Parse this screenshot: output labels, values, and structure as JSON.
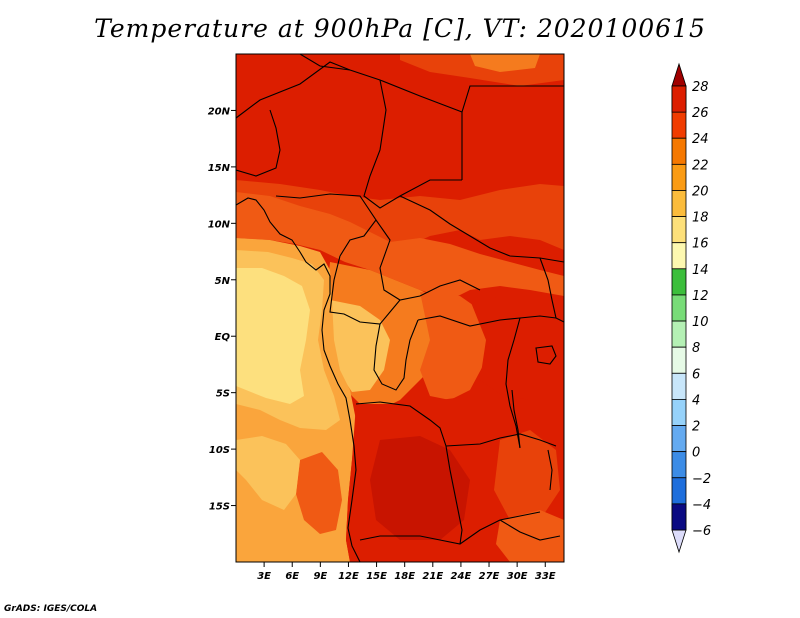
{
  "title": "Temperature at 900hPa [C], VT: 2020100615",
  "footer": "GrADS: IGES/COLA",
  "map": {
    "lon_range": [
      0,
      35
    ],
    "lat_range": [
      -20,
      25
    ],
    "lon_ticks": [
      {
        "value": 3,
        "label": "3E"
      },
      {
        "value": 6,
        "label": "6E"
      },
      {
        "value": 9,
        "label": "9E"
      },
      {
        "value": 12,
        "label": "12E"
      },
      {
        "value": 15,
        "label": "15E"
      },
      {
        "value": 18,
        "label": "18E"
      },
      {
        "value": 21,
        "label": "21E"
      },
      {
        "value": 24,
        "label": "24E"
      },
      {
        "value": 27,
        "label": "27E"
      },
      {
        "value": 30,
        "label": "30E"
      },
      {
        "value": 33,
        "label": "33E"
      }
    ],
    "lat_ticks": [
      {
        "value": 20,
        "label": "20N"
      },
      {
        "value": 15,
        "label": "15N"
      },
      {
        "value": 10,
        "label": "10N"
      },
      {
        "value": 5,
        "label": "5N"
      },
      {
        "value": 0,
        "label": "EQ"
      },
      {
        "value": -5,
        "label": "5S"
      },
      {
        "value": -10,
        "label": "10S"
      },
      {
        "value": -15,
        "label": "15S"
      }
    ]
  },
  "colorbar": {
    "levels": [
      {
        "label": "28",
        "color": "#a00000"
      },
      {
        "label": "26",
        "color": "#dc1e00"
      },
      {
        "label": "24",
        "color": "#f03c00"
      },
      {
        "label": "22",
        "color": "#f57800"
      },
      {
        "label": "20",
        "color": "#fa9b14"
      },
      {
        "label": "18",
        "color": "#fbbc3c"
      },
      {
        "label": "16",
        "color": "#fde07a"
      },
      {
        "label": "14",
        "color": "#fdf8b0"
      },
      {
        "label": "12",
        "color": "#3cbe3c"
      },
      {
        "label": "10",
        "color": "#78dc78"
      },
      {
        "label": "8",
        "color": "#b4f0b4"
      },
      {
        "label": "6",
        "color": "#e6fae6"
      },
      {
        "label": "4",
        "color": "#c8e6fa"
      },
      {
        "label": "2",
        "color": "#96d2fa"
      },
      {
        "label": "0",
        "color": "#64aaf0"
      },
      {
        "label": "−2",
        "color": "#3c8ce6"
      },
      {
        "label": "−4",
        "color": "#1e6edc"
      },
      {
        "label": "−6",
        "color": "#0a46b4"
      }
    ],
    "top_color": "#a00000",
    "bottom_color": "#dcdcfa",
    "below_color": "#0a0a82"
  },
  "field_colors": {
    "t28": "#c81400",
    "t26": "#dc1e00",
    "t25": "#e8420a",
    "t24": "#f05a14",
    "t22": "#f57b1e",
    "t20": "#faa53c",
    "t18": "#fbc25a",
    "t16": "#fde07e"
  }
}
